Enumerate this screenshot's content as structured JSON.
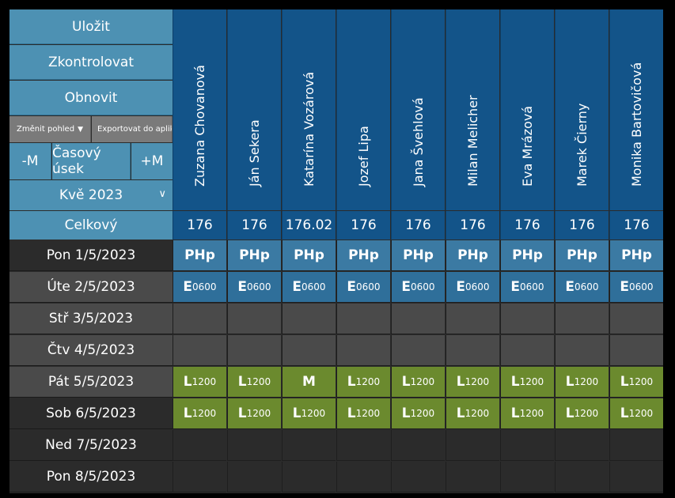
{
  "toolbar": {
    "save": "Uložit",
    "check": "Zkontrolovat",
    "refresh": "Obnovit",
    "change_view": "Změnit pohled",
    "export": "Exportovat do aplikace Excel",
    "minus_month": "-M",
    "time_range": "Časový úsek",
    "plus_month": "+M",
    "month": "Kvě 2023",
    "total_label": "Celkový"
  },
  "colors": {
    "header_blue": "#135489",
    "button_blue": "#4d91b3",
    "php_cell": "#3b7aa3",
    "e_cell": "#2f6f9a",
    "l_cell": "#6b8a2e",
    "grey_button": "#7a7a7a",
    "row_dark": "#2b2b2b",
    "row_mid": "#4a4a4a"
  },
  "employees": [
    {
      "name": "Zuzana Chovanová",
      "total": "176"
    },
    {
      "name": "Ján Sekera",
      "total": "176"
    },
    {
      "name": "Katarína Vozárová",
      "total": "176.02"
    },
    {
      "name": "Jozef Lipa",
      "total": "176"
    },
    {
      "name": "Jana Švehlová",
      "total": "176"
    },
    {
      "name": "Milan Melicher",
      "total": "176"
    },
    {
      "name": "Eva Mrázová",
      "total": "176"
    },
    {
      "name": "Marek Čierny",
      "total": "176"
    },
    {
      "name": "Monika Bartovičová",
      "total": "176"
    }
  ],
  "days": [
    {
      "label": "Pon 1/5/2023",
      "bg": "#2b2b2b",
      "cells": [
        [
          "PHp",
          ""
        ],
        [
          "PHp",
          ""
        ],
        [
          "PHp",
          ""
        ],
        [
          "PHp",
          ""
        ],
        [
          "PHp",
          ""
        ],
        [
          "PHp",
          ""
        ],
        [
          "PHp",
          ""
        ],
        [
          "PHp",
          ""
        ],
        [
          "PHp",
          ""
        ]
      ]
    },
    {
      "label": "Úte 2/5/2023",
      "bg": "#4a4a4a",
      "cells": [
        [
          "E",
          "0600"
        ],
        [
          "E",
          "0600"
        ],
        [
          "E",
          "0600"
        ],
        [
          "E",
          "0600"
        ],
        [
          "E",
          "0600"
        ],
        [
          "E",
          "0600"
        ],
        [
          "E",
          "0600"
        ],
        [
          "E",
          "0600"
        ],
        [
          "E",
          "0600"
        ]
      ]
    },
    {
      "label": "Stř 3/5/2023",
      "bg": "#4a4a4a",
      "cells": [
        [
          "",
          ""
        ],
        [
          "",
          ""
        ],
        [
          "",
          ""
        ],
        [
          "",
          ""
        ],
        [
          "",
          ""
        ],
        [
          "",
          ""
        ],
        [
          "",
          ""
        ],
        [
          "",
          ""
        ],
        [
          "",
          ""
        ]
      ]
    },
    {
      "label": "Čtv 4/5/2023",
      "bg": "#4a4a4a",
      "cells": [
        [
          "",
          ""
        ],
        [
          "",
          ""
        ],
        [
          "",
          ""
        ],
        [
          "",
          ""
        ],
        [
          "",
          ""
        ],
        [
          "",
          ""
        ],
        [
          "",
          ""
        ],
        [
          "",
          ""
        ],
        [
          "",
          ""
        ]
      ]
    },
    {
      "label": "Pát 5/5/2023",
      "bg": "#4a4a4a",
      "cells": [
        [
          "L",
          "1200"
        ],
        [
          "L",
          "1200"
        ],
        [
          "M",
          ""
        ],
        [
          "L",
          "1200"
        ],
        [
          "L",
          "1200"
        ],
        [
          "L",
          "1200"
        ],
        [
          "L",
          "1200"
        ],
        [
          "L",
          "1200"
        ],
        [
          "L",
          "1200"
        ]
      ]
    },
    {
      "label": "Sob 6/5/2023",
      "bg": "#2b2b2b",
      "cells": [
        [
          "L",
          "1200"
        ],
        [
          "L",
          "1200"
        ],
        [
          "L",
          "1200"
        ],
        [
          "L",
          "1200"
        ],
        [
          "L",
          "1200"
        ],
        [
          "L",
          "1200"
        ],
        [
          "L",
          "1200"
        ],
        [
          "L",
          "1200"
        ],
        [
          "L",
          "1200"
        ]
      ]
    },
    {
      "label": "Ned 7/5/2023",
      "bg": "#2b2b2b",
      "cells": [
        [
          "",
          ""
        ],
        [
          "",
          ""
        ],
        [
          "",
          ""
        ],
        [
          "",
          ""
        ],
        [
          "",
          ""
        ],
        [
          "",
          ""
        ],
        [
          "",
          ""
        ],
        [
          "",
          ""
        ],
        [
          "",
          ""
        ]
      ]
    },
    {
      "label": "Pon 8/5/2023",
      "bg": "#2b2b2b",
      "cells": [
        [
          "",
          ""
        ],
        [
          "",
          ""
        ],
        [
          "",
          ""
        ],
        [
          "",
          ""
        ],
        [
          "",
          ""
        ],
        [
          "",
          ""
        ],
        [
          "",
          ""
        ],
        [
          "",
          ""
        ],
        [
          "",
          ""
        ]
      ]
    }
  ]
}
